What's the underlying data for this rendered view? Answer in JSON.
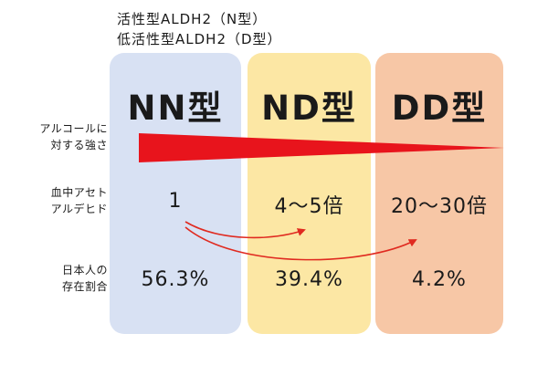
{
  "legend": {
    "line1": "活性型ALDH2（N型）",
    "line2": "低活性型ALDH2（D型）"
  },
  "columns": [
    {
      "title": "NN型",
      "color": "#d8e1f3"
    },
    {
      "title": "ND型",
      "color": "#fce7a4"
    },
    {
      "title": "DD型",
      "color": "#f7c7a6"
    }
  ],
  "rows": {
    "strength": {
      "label_line1": "アルコールに",
      "label_line2": "対する強さ"
    },
    "acetaldehyde": {
      "label_line1": "血中アセト",
      "label_line2": "アルデヒド",
      "values": [
        "1",
        "4～5倍",
        "20～30倍"
      ]
    },
    "population": {
      "label_line1": "日本人の",
      "label_line2": "存在割合",
      "values": [
        "56.3%",
        "39.4%",
        "4.2%"
      ]
    }
  },
  "colors": {
    "wedge": "#e8141c",
    "arrow": "#e02a20"
  }
}
